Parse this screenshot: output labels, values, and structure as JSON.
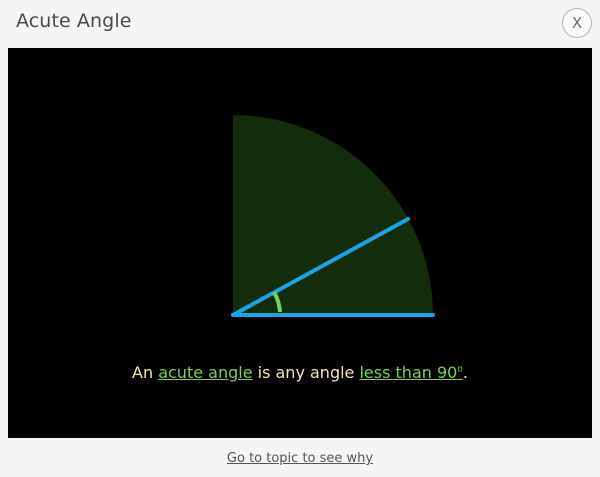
{
  "dialog": {
    "title": "Acute Angle",
    "close_label": "X"
  },
  "caption": {
    "prefix": "An ",
    "term": "acute angle",
    "middle": " is any angle ",
    "condition": "less than 90",
    "degree_symbol": "o",
    "suffix": "."
  },
  "footer": {
    "link_text": "Go to topic to see why"
  },
  "colors": {
    "sector_fill": "#132c0b",
    "ray_color": "#1ba3e8",
    "angle_arc_color": "#72d65e",
    "caption_text": "#f2e6b3",
    "link_green": "#7dd05a"
  }
}
